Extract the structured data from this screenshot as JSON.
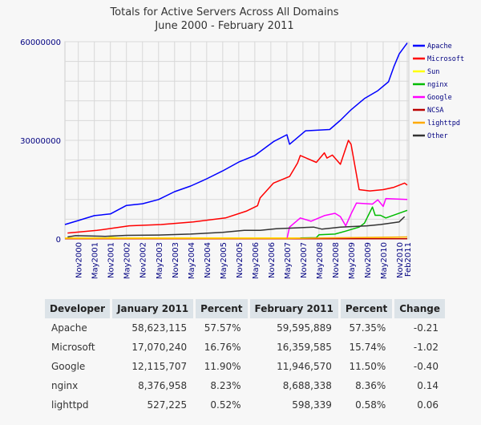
{
  "chart_data": {
    "type": "line",
    "title": "Totals for Active Servers Across All Domains",
    "subtitle": "June 2000 - February 2011",
    "xlabel": "",
    "ylabel": "",
    "xlim": [
      "2000-06",
      "2011-02"
    ],
    "ylim": [
      0,
      60000000
    ],
    "yticks": [
      "0",
      "30000000",
      "60000000"
    ],
    "xticks": [
      "Nov2000",
      "May2001",
      "Nov2001",
      "May2002",
      "Nov2002",
      "May2003",
      "Nov2003",
      "May2004",
      "Nov2004",
      "May2005",
      "Nov2005",
      "May2006",
      "Nov2006",
      "May2007",
      "Nov2007",
      "May2008",
      "Nov2008",
      "May2009",
      "Nov2009",
      "May2010",
      "Nov2010",
      "Feb2011"
    ],
    "grid": true,
    "legend": "right",
    "series": [
      {
        "name": "Apache",
        "color": "#0000ff",
        "points": [
          [
            "2000-06",
            4400000
          ],
          [
            "2000-11",
            5600000
          ],
          [
            "2001-05",
            7100000
          ],
          [
            "2001-11",
            7600000
          ],
          [
            "2002-05",
            10200000
          ],
          [
            "2002-11",
            10700000
          ],
          [
            "2003-05",
            12000000
          ],
          [
            "2003-11",
            14400000
          ],
          [
            "2004-05",
            16100000
          ],
          [
            "2004-11",
            18300000
          ],
          [
            "2005-05",
            20700000
          ],
          [
            "2005-11",
            23400000
          ],
          [
            "2006-05",
            25400000
          ],
          [
            "2006-12",
            29600000
          ],
          [
            "2007-05",
            31700000
          ],
          [
            "2007-06",
            28800000
          ],
          [
            "2007-12",
            32900000
          ],
          [
            "2008-09",
            33300000
          ],
          [
            "2009-01",
            36100000
          ],
          [
            "2009-05",
            39300000
          ],
          [
            "2009-10",
            42700000
          ],
          [
            "2010-03",
            45100000
          ],
          [
            "2010-07",
            47800000
          ],
          [
            "2010-09",
            52400000
          ],
          [
            "2010-11",
            56300000
          ],
          [
            "2011-02",
            59600000
          ]
        ]
      },
      {
        "name": "Microsoft",
        "color": "#ff0000",
        "points": [
          [
            "2000-07",
            1800000
          ],
          [
            "2001-06",
            2600000
          ],
          [
            "2001-12",
            3300000
          ],
          [
            "2002-06",
            4000000
          ],
          [
            "2003-06",
            4400000
          ],
          [
            "2004-06",
            5200000
          ],
          [
            "2005-06",
            6400000
          ],
          [
            "2006-02",
            8500000
          ],
          [
            "2006-06",
            10100000
          ],
          [
            "2006-07",
            12500000
          ],
          [
            "2006-12",
            17000000
          ],
          [
            "2007-06",
            19000000
          ],
          [
            "2007-09",
            23100000
          ],
          [
            "2007-10",
            25400000
          ],
          [
            "2008-04",
            23300000
          ],
          [
            "2008-07",
            26200000
          ],
          [
            "2008-08",
            24600000
          ],
          [
            "2008-10",
            25500000
          ],
          [
            "2009-01",
            22700000
          ],
          [
            "2009-04",
            30000000
          ],
          [
            "2009-05",
            28800000
          ],
          [
            "2009-08",
            15000000
          ],
          [
            "2009-12",
            14600000
          ],
          [
            "2010-05",
            15000000
          ],
          [
            "2010-09",
            15700000
          ],
          [
            "2011-01",
            17000000
          ],
          [
            "2011-02",
            16400000
          ]
        ]
      },
      {
        "name": "Sun",
        "color": "#ffff00",
        "points": [
          [
            "2000-06",
            300000
          ],
          [
            "2001-10",
            300000
          ],
          [
            "2001-11",
            500000
          ],
          [
            "2002-02",
            300000
          ],
          [
            "2007-05",
            300000
          ],
          [
            "2011-02",
            100000
          ]
        ]
      },
      {
        "name": "nginx",
        "color": "#00bb00",
        "points": [
          [
            "2007-10",
            300000
          ],
          [
            "2008-04",
            400000
          ],
          [
            "2008-05",
            1300000
          ],
          [
            "2008-11",
            1500000
          ],
          [
            "2009-03",
            2400000
          ],
          [
            "2009-08",
            3600000
          ],
          [
            "2009-10",
            4800000
          ],
          [
            "2010-01",
            9700000
          ],
          [
            "2010-02",
            7200000
          ],
          [
            "2010-04",
            7200000
          ],
          [
            "2010-06",
            6400000
          ],
          [
            "2011-02",
            8700000
          ]
        ]
      },
      {
        "name": "Google",
        "color": "#ff00ff",
        "points": [
          [
            "2007-05",
            0
          ],
          [
            "2007-06",
            3600000
          ],
          [
            "2007-10",
            6400000
          ],
          [
            "2008-02",
            5400000
          ],
          [
            "2008-07",
            7100000
          ],
          [
            "2008-11",
            7800000
          ],
          [
            "2009-01",
            6800000
          ],
          [
            "2009-03",
            4000000
          ],
          [
            "2009-05",
            7600000
          ],
          [
            "2009-07",
            10900000
          ],
          [
            "2010-01",
            10600000
          ],
          [
            "2010-03",
            11900000
          ],
          [
            "2010-05",
            9900000
          ],
          [
            "2010-06",
            12300000
          ],
          [
            "2011-02",
            12000000
          ]
        ]
      },
      {
        "name": "NCSA",
        "color": "#bb0000",
        "points": [
          [
            "2000-06",
            50000
          ],
          [
            "2011-02",
            50000
          ]
        ]
      },
      {
        "name": "lighttpd",
        "color": "#ffaa00",
        "points": [
          [
            "2000-06",
            150000
          ],
          [
            "2007-05",
            150000
          ],
          [
            "2008-06",
            300000
          ],
          [
            "2010-05",
            500000
          ],
          [
            "2011-02",
            600000
          ]
        ]
      },
      {
        "name": "Other",
        "color": "#333333",
        "points": [
          [
            "2000-07",
            600000
          ],
          [
            "2000-10",
            1000000
          ],
          [
            "2001-09",
            800000
          ],
          [
            "2002-05",
            1100000
          ],
          [
            "2003-05",
            1200000
          ],
          [
            "2004-05",
            1500000
          ],
          [
            "2005-05",
            2000000
          ],
          [
            "2006-01",
            2600000
          ],
          [
            "2006-07",
            2600000
          ],
          [
            "2007-01",
            3100000
          ],
          [
            "2008-03",
            3600000
          ],
          [
            "2008-06",
            3000000
          ],
          [
            "2009-01",
            3600000
          ],
          [
            "2009-11",
            4000000
          ],
          [
            "2010-04",
            4400000
          ],
          [
            "2010-11",
            5200000
          ],
          [
            "2011-01",
            6800000
          ]
        ]
      }
    ]
  },
  "table": {
    "headers": [
      "Developer",
      "January 2011",
      "Percent",
      "February 2011",
      "Percent",
      "Change"
    ],
    "rows": [
      [
        "Apache",
        "58,623,115",
        "57.57%",
        "59,595,889",
        "57.35%",
        "-0.21"
      ],
      [
        "Microsoft",
        "17,070,240",
        "16.76%",
        "16,359,585",
        "15.74%",
        "-1.02"
      ],
      [
        "Google",
        "12,115,707",
        "11.90%",
        "11,946,570",
        "11.50%",
        "-0.40"
      ],
      [
        "nginx",
        "8,376,958",
        "8.23%",
        "8,688,338",
        "8.36%",
        "0.14"
      ],
      [
        "lighttpd",
        "527,225",
        "0.52%",
        "598,339",
        "0.58%",
        "0.06"
      ]
    ]
  }
}
